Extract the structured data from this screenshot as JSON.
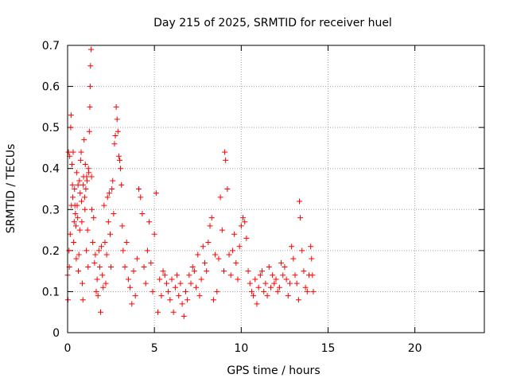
{
  "chart_data": {
    "type": "scatter",
    "title": "Day 215 of 2025, SRMTID for receiver huel",
    "xlabel": "GPS time / hours",
    "ylabel": "SRMTID / TECUs",
    "xlim": [
      0,
      24
    ],
    "ylim": [
      0,
      0.7
    ],
    "x_ticks": [
      0,
      5,
      10,
      15,
      20
    ],
    "y_ticks": [
      0,
      0.1,
      0.2,
      0.3,
      0.4,
      0.5,
      0.6,
      0.7
    ],
    "x_tick_labels": [
      "0",
      "5",
      "10",
      "15",
      "20"
    ],
    "y_tick_labels": [
      "0",
      "0.1",
      "0.2",
      "0.3",
      "0.4",
      "0.5",
      "0.6",
      "0.7"
    ],
    "grid": true,
    "marker": "+",
    "series": [
      {
        "name": "SRMTID",
        "color": "#ff0000",
        "points": [
          [
            0.0,
            0.14
          ],
          [
            0.02,
            0.08
          ],
          [
            0.05,
            0.44
          ],
          [
            0.08,
            0.2
          ],
          [
            0.1,
            0.16
          ],
          [
            0.12,
            0.43
          ],
          [
            0.15,
            0.24
          ],
          [
            0.18,
            0.5
          ],
          [
            0.2,
            0.53
          ],
          [
            0.22,
            0.31
          ],
          [
            0.25,
            0.41
          ],
          [
            0.28,
            0.36
          ],
          [
            0.3,
            0.33
          ],
          [
            0.32,
            0.44
          ],
          [
            0.35,
            0.22
          ],
          [
            0.38,
            0.27
          ],
          [
            0.4,
            0.35
          ],
          [
            0.42,
            0.31
          ],
          [
            0.45,
            0.29
          ],
          [
            0.48,
            0.26
          ],
          [
            0.5,
            0.18
          ],
          [
            0.52,
            0.39
          ],
          [
            0.55,
            0.31
          ],
          [
            0.58,
            0.28
          ],
          [
            0.6,
            0.36
          ],
          [
            0.62,
            0.15
          ],
          [
            0.65,
            0.19
          ],
          [
            0.68,
            0.37
          ],
          [
            0.7,
            0.25
          ],
          [
            0.72,
            0.34
          ],
          [
            0.75,
            0.42
          ],
          [
            0.78,
            0.44
          ],
          [
            0.8,
            0.32
          ],
          [
            0.82,
            0.27
          ],
          [
            0.85,
            0.12
          ],
          [
            0.88,
            0.08
          ],
          [
            0.9,
            0.36
          ],
          [
            0.92,
            0.38
          ],
          [
            0.95,
            0.47
          ],
          [
            0.98,
            0.33
          ],
          [
            1.0,
            0.3
          ],
          [
            1.02,
            0.41
          ],
          [
            1.05,
            0.35
          ],
          [
            1.08,
            0.2
          ],
          [
            1.1,
            0.38
          ],
          [
            1.12,
            0.37
          ],
          [
            1.15,
            0.25
          ],
          [
            1.18,
            0.16
          ],
          [
            1.2,
            0.4
          ],
          [
            1.22,
            0.39
          ],
          [
            1.25,
            0.49
          ],
          [
            1.28,
            0.55
          ],
          [
            1.3,
            0.6
          ],
          [
            1.32,
            0.65
          ],
          [
            1.35,
            0.69
          ],
          [
            1.38,
            0.38
          ],
          [
            1.4,
            0.3
          ],
          [
            1.45,
            0.22
          ],
          [
            1.5,
            0.28
          ],
          [
            1.55,
            0.17
          ],
          [
            1.6,
            0.19
          ],
          [
            1.65,
            0.1
          ],
          [
            1.7,
            0.13
          ],
          [
            1.75,
            0.09
          ],
          [
            1.8,
            0.2
          ],
          [
            1.85,
            0.16
          ],
          [
            1.9,
            0.05
          ],
          [
            1.95,
            0.21
          ],
          [
            2.0,
            0.14
          ],
          [
            2.05,
            0.11
          ],
          [
            2.1,
            0.31
          ],
          [
            2.15,
            0.22
          ],
          [
            2.2,
            0.12
          ],
          [
            2.25,
            0.19
          ],
          [
            2.3,
            0.33
          ],
          [
            2.35,
            0.27
          ],
          [
            2.4,
            0.34
          ],
          [
            2.45,
            0.24
          ],
          [
            2.5,
            0.16
          ],
          [
            2.55,
            0.35
          ],
          [
            2.6,
            0.37
          ],
          [
            2.65,
            0.29
          ],
          [
            2.7,
            0.46
          ],
          [
            2.75,
            0.48
          ],
          [
            2.8,
            0.55
          ],
          [
            2.85,
            0.52
          ],
          [
            2.9,
            0.49
          ],
          [
            2.95,
            0.43
          ],
          [
            3.0,
            0.42
          ],
          [
            3.05,
            0.4
          ],
          [
            3.1,
            0.36
          ],
          [
            3.15,
            0.26
          ],
          [
            3.2,
            0.2
          ],
          [
            3.3,
            0.16
          ],
          [
            3.4,
            0.22
          ],
          [
            3.5,
            0.13
          ],
          [
            3.6,
            0.11
          ],
          [
            3.7,
            0.07
          ],
          [
            3.8,
            0.15
          ],
          [
            3.9,
            0.09
          ],
          [
            4.0,
            0.18
          ],
          [
            4.1,
            0.35
          ],
          [
            4.2,
            0.33
          ],
          [
            4.3,
            0.29
          ],
          [
            4.4,
            0.16
          ],
          [
            4.5,
            0.12
          ],
          [
            4.6,
            0.2
          ],
          [
            4.7,
            0.27
          ],
          [
            4.8,
            0.17
          ],
          [
            4.9,
            0.1
          ],
          [
            5.0,
            0.24
          ],
          [
            5.1,
            0.34
          ],
          [
            5.2,
            0.05
          ],
          [
            5.3,
            0.13
          ],
          [
            5.4,
            0.09
          ],
          [
            5.5,
            0.15
          ],
          [
            5.6,
            0.14
          ],
          [
            5.7,
            0.12
          ],
          [
            5.8,
            0.1
          ],
          [
            5.9,
            0.08
          ],
          [
            6.0,
            0.13
          ],
          [
            6.1,
            0.05
          ],
          [
            6.2,
            0.11
          ],
          [
            6.3,
            0.14
          ],
          [
            6.4,
            0.09
          ],
          [
            6.5,
            0.12
          ],
          [
            6.6,
            0.07
          ],
          [
            6.7,
            0.04
          ],
          [
            6.8,
            0.1
          ],
          [
            6.9,
            0.08
          ],
          [
            7.0,
            0.14
          ],
          [
            7.1,
            0.12
          ],
          [
            7.2,
            0.16
          ],
          [
            7.3,
            0.15
          ],
          [
            7.4,
            0.11
          ],
          [
            7.5,
            0.19
          ],
          [
            7.6,
            0.09
          ],
          [
            7.7,
            0.13
          ],
          [
            7.8,
            0.21
          ],
          [
            7.9,
            0.17
          ],
          [
            8.0,
            0.15
          ],
          [
            8.1,
            0.22
          ],
          [
            8.2,
            0.26
          ],
          [
            8.3,
            0.28
          ],
          [
            8.4,
            0.08
          ],
          [
            8.5,
            0.19
          ],
          [
            8.6,
            0.1
          ],
          [
            8.7,
            0.18
          ],
          [
            8.8,
            0.33
          ],
          [
            8.9,
            0.25
          ],
          [
            9.0,
            0.15
          ],
          [
            9.05,
            0.44
          ],
          [
            9.1,
            0.42
          ],
          [
            9.2,
            0.35
          ],
          [
            9.3,
            0.19
          ],
          [
            9.4,
            0.14
          ],
          [
            9.5,
            0.2
          ],
          [
            9.6,
            0.24
          ],
          [
            9.7,
            0.17
          ],
          [
            9.8,
            0.13
          ],
          [
            9.9,
            0.21
          ],
          [
            10.0,
            0.26
          ],
          [
            10.1,
            0.28
          ],
          [
            10.2,
            0.27
          ],
          [
            10.3,
            0.23
          ],
          [
            10.4,
            0.15
          ],
          [
            10.5,
            0.12
          ],
          [
            10.6,
            0.1
          ],
          [
            10.7,
            0.09
          ],
          [
            10.8,
            0.13
          ],
          [
            10.9,
            0.07
          ],
          [
            11.0,
            0.11
          ],
          [
            11.1,
            0.14
          ],
          [
            11.2,
            0.15
          ],
          [
            11.3,
            0.1
          ],
          [
            11.4,
            0.12
          ],
          [
            11.5,
            0.09
          ],
          [
            11.6,
            0.16
          ],
          [
            11.7,
            0.11
          ],
          [
            11.8,
            0.14
          ],
          [
            11.9,
            0.12
          ],
          [
            12.0,
            0.13
          ],
          [
            12.1,
            0.1
          ],
          [
            12.2,
            0.11
          ],
          [
            12.3,
            0.17
          ],
          [
            12.4,
            0.14
          ],
          [
            12.5,
            0.16
          ],
          [
            12.6,
            0.13
          ],
          [
            12.7,
            0.09
          ],
          [
            12.8,
            0.12
          ],
          [
            12.9,
            0.21
          ],
          [
            13.0,
            0.18
          ],
          [
            13.1,
            0.14
          ],
          [
            13.2,
            0.12
          ],
          [
            13.3,
            0.08
          ],
          [
            13.35,
            0.32
          ],
          [
            13.4,
            0.28
          ],
          [
            13.5,
            0.2
          ],
          [
            13.6,
            0.15
          ],
          [
            13.7,
            0.11
          ],
          [
            13.8,
            0.1
          ],
          [
            13.9,
            0.14
          ],
          [
            14.0,
            0.21
          ],
          [
            14.05,
            0.18
          ],
          [
            14.1,
            0.14
          ],
          [
            14.15,
            0.1
          ]
        ]
      }
    ]
  }
}
